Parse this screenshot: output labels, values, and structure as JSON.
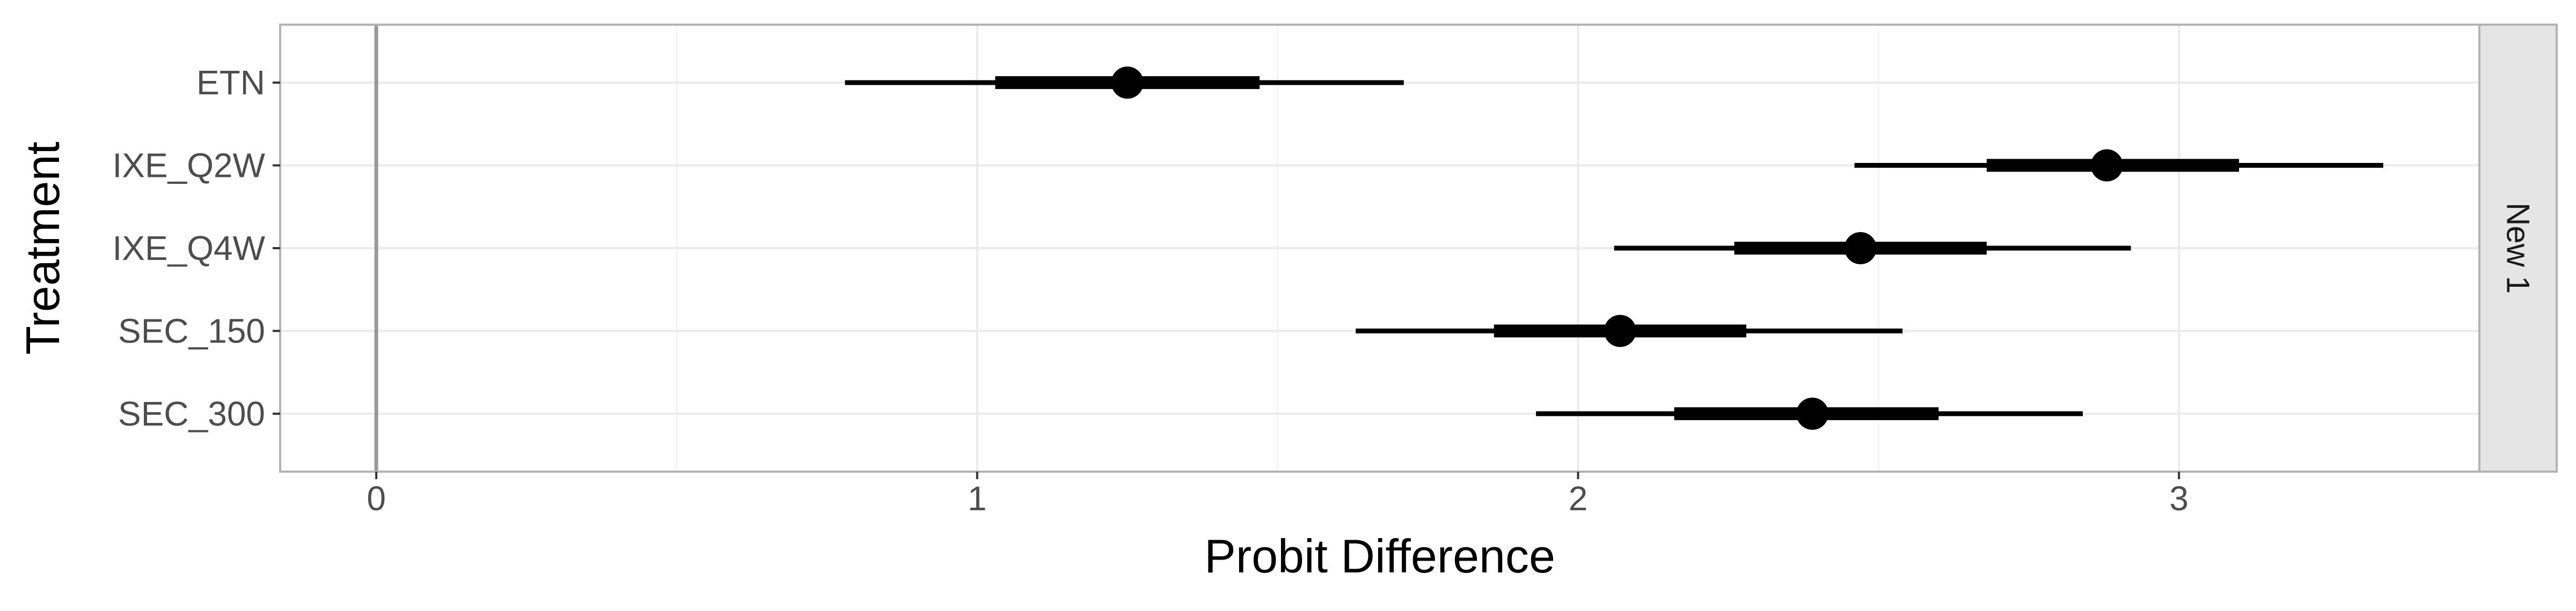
{
  "chart_data": {
    "type": "forest",
    "xlabel": "Probit Difference",
    "ylabel": "Treatment",
    "xlim": [
      -0.16,
      3.5
    ],
    "x_ticks": [
      0,
      1,
      2,
      3
    ],
    "reference_line": 0,
    "facet_label": "New 1",
    "grid": true,
    "categories": [
      "ETN",
      "IXE_Q2W",
      "IXE_Q4W",
      "SEC_150",
      "SEC_300"
    ],
    "series": [
      {
        "label": "ETN",
        "estimate": 1.25,
        "inner": [
          1.03,
          1.47
        ],
        "outer": [
          0.78,
          1.71
        ]
      },
      {
        "label": "IXE_Q2W",
        "estimate": 2.88,
        "inner": [
          2.68,
          3.1
        ],
        "outer": [
          2.46,
          3.34
        ]
      },
      {
        "label": "IXE_Q4W",
        "estimate": 2.47,
        "inner": [
          2.26,
          2.68
        ],
        "outer": [
          2.06,
          2.92
        ]
      },
      {
        "label": "SEC_150",
        "estimate": 2.07,
        "inner": [
          1.86,
          2.28
        ],
        "outer": [
          1.63,
          2.54
        ]
      },
      {
        "label": "SEC_300",
        "estimate": 2.39,
        "inner": [
          2.16,
          2.6
        ],
        "outer": [
          1.93,
          2.84
        ]
      }
    ]
  }
}
